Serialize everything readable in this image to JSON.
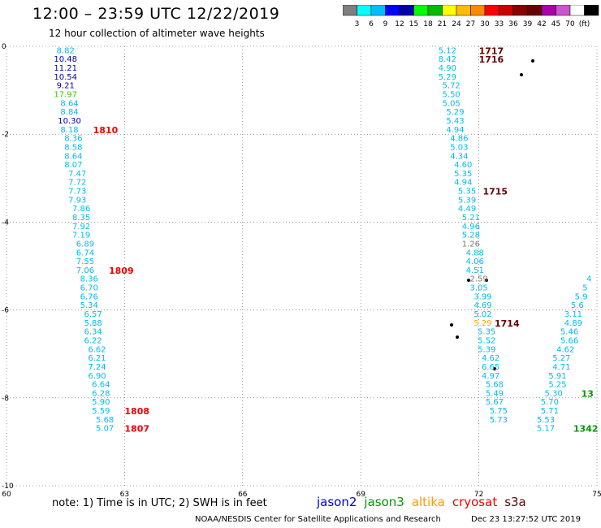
{
  "header": {
    "title": "12:00 – 23:59 UTC 12/22/2019",
    "subtitle": "12 hour collection of altimeter wave heights"
  },
  "legend_scale": {
    "colors": [
      "#7f7f7f",
      "#00ffff",
      "#00bfff",
      "#0000ff",
      "#0000aa",
      "#00ff00",
      "#00bb00",
      "#ffff00",
      "#ffbb00",
      "#ff8800",
      "#ff0000",
      "#cc0000",
      "#880000",
      "#660000",
      "#aa00aa",
      "#cc55cc",
      "#ffffff",
      "#000000"
    ],
    "labels": [
      "3",
      "6",
      "9",
      "12",
      "15",
      "18",
      "21",
      "24",
      "27",
      "30",
      "33",
      "36",
      "39",
      "42",
      "45",
      "70",
      "(ft)"
    ]
  },
  "footer": {
    "note": "note: 1) Time is in UTC; 2) SWH is in feet",
    "credit": "NOAA/NESDIS Center for Satellite Applications and Research",
    "timestamp": "Dec 23 13:27:52 UTC 2019"
  },
  "satellites": [
    {
      "name": "jason2",
      "color": "#0000cc"
    },
    {
      "name": "jason3",
      "color": "#009900"
    },
    {
      "name": "altika",
      "color": "#ff9900"
    },
    {
      "name": "cryosat",
      "color": "#ee0000"
    },
    {
      "name": "s3a",
      "color": "#660000"
    }
  ],
  "chart_data": {
    "type": "scatter",
    "xlim": [
      60,
      75
    ],
    "ylim": [
      -10,
      0
    ],
    "x_ticks": [
      "60",
      "63",
      "66",
      "69",
      "72",
      "75"
    ],
    "y_ticks": [
      "0",
      "-2",
      "-4",
      "-6",
      "-8",
      "-10"
    ],
    "grid": "dotted",
    "tracks": [
      {
        "name": "track-west",
        "color": "#00bbee",
        "points": [
          {
            "x": 61.5,
            "y": -0.1,
            "v": "8.82",
            "color": "#00bbee"
          },
          {
            "x": 61.5,
            "y": -0.3,
            "v": "10.48",
            "color": "#0000aa"
          },
          {
            "x": 61.5,
            "y": -0.5,
            "v": "11.21",
            "color": "#0000aa"
          },
          {
            "x": 61.5,
            "y": -0.7,
            "v": "10.54",
            "color": "#0000aa"
          },
          {
            "x": 61.5,
            "y": -0.9,
            "v": "9.21",
            "color": "#0000aa"
          },
          {
            "x": 61.5,
            "y": -1.1,
            "v": "17.97",
            "color": "#33cc00"
          },
          {
            "x": 61.6,
            "y": -1.3,
            "v": "8.64"
          },
          {
            "x": 61.6,
            "y": -1.5,
            "v": "8.84"
          },
          {
            "x": 61.6,
            "y": -1.7,
            "v": "10.30",
            "color": "#0000aa"
          },
          {
            "x": 61.6,
            "y": -1.9,
            "v": "8.18"
          },
          {
            "x": 61.7,
            "y": -2.1,
            "v": "8.36"
          },
          {
            "x": 61.7,
            "y": -2.3,
            "v": "8.58"
          },
          {
            "x": 61.7,
            "y": -2.5,
            "v": "8.64"
          },
          {
            "x": 61.7,
            "y": -2.7,
            "v": "8.07"
          },
          {
            "x": 61.8,
            "y": -2.9,
            "v": "7.47"
          },
          {
            "x": 61.8,
            "y": -3.1,
            "v": "7.72"
          },
          {
            "x": 61.8,
            "y": -3.3,
            "v": "7.73"
          },
          {
            "x": 61.8,
            "y": -3.5,
            "v": "7.93"
          },
          {
            "x": 61.9,
            "y": -3.7,
            "v": "7.86"
          },
          {
            "x": 61.9,
            "y": -3.9,
            "v": "8.35"
          },
          {
            "x": 61.9,
            "y": -4.1,
            "v": "7.92"
          },
          {
            "x": 61.9,
            "y": -4.3,
            "v": "7.19"
          },
          {
            "x": 62.0,
            "y": -4.5,
            "v": "6.89"
          },
          {
            "x": 62.0,
            "y": -4.7,
            "v": "6.74"
          },
          {
            "x": 62.0,
            "y": -4.9,
            "v": "7.55"
          },
          {
            "x": 62.0,
            "y": -5.1,
            "v": "7.06"
          },
          {
            "x": 62.1,
            "y": -5.3,
            "v": "8.36"
          },
          {
            "x": 62.1,
            "y": -5.5,
            "v": "6.70"
          },
          {
            "x": 62.1,
            "y": -5.7,
            "v": "6.76"
          },
          {
            "x": 62.1,
            "y": -5.9,
            "v": "5.34"
          },
          {
            "x": 62.2,
            "y": -6.1,
            "v": "6.57"
          },
          {
            "x": 62.2,
            "y": -6.3,
            "v": "5.88"
          },
          {
            "x": 62.2,
            "y": -6.5,
            "v": "6.34"
          },
          {
            "x": 62.2,
            "y": -6.7,
            "v": "6.22"
          },
          {
            "x": 62.3,
            "y": -6.9,
            "v": "6.62"
          },
          {
            "x": 62.3,
            "y": -7.1,
            "v": "6.21"
          },
          {
            "x": 62.3,
            "y": -7.3,
            "v": "7.24"
          },
          {
            "x": 62.3,
            "y": -7.5,
            "v": "6.90"
          },
          {
            "x": 62.4,
            "y": -7.7,
            "v": "6.64"
          },
          {
            "x": 62.4,
            "y": -7.9,
            "v": "6.28"
          },
          {
            "x": 62.4,
            "y": -8.1,
            "v": "5.90"
          },
          {
            "x": 62.4,
            "y": -8.3,
            "v": "5.59"
          },
          {
            "x": 62.5,
            "y": -8.5,
            "v": "5.68"
          },
          {
            "x": 62.5,
            "y": -8.7,
            "v": "5.07"
          }
        ]
      },
      {
        "name": "track-central",
        "color": "#00bbee",
        "points": [
          {
            "x": 71.2,
            "y": -0.1,
            "v": "5.12"
          },
          {
            "x": 71.2,
            "y": -0.3,
            "v": "8.42"
          },
          {
            "x": 71.2,
            "y": -0.5,
            "v": "4.90"
          },
          {
            "x": 71.2,
            "y": -0.7,
            "v": "5.29"
          },
          {
            "x": 71.3,
            "y": -0.9,
            "v": "5.72"
          },
          {
            "x": 71.3,
            "y": -1.1,
            "v": "5.50"
          },
          {
            "x": 71.3,
            "y": -1.3,
            "v": "5.05"
          },
          {
            "x": 71.4,
            "y": -1.5,
            "v": "5.29"
          },
          {
            "x": 71.4,
            "y": -1.7,
            "v": "5.43"
          },
          {
            "x": 71.4,
            "y": -1.9,
            "v": "4.94"
          },
          {
            "x": 71.5,
            "y": -2.1,
            "v": "4.86"
          },
          {
            "x": 71.5,
            "y": -2.3,
            "v": "5.03"
          },
          {
            "x": 71.5,
            "y": -2.5,
            "v": "4.34"
          },
          {
            "x": 71.6,
            "y": -2.7,
            "v": "4.60"
          },
          {
            "x": 71.6,
            "y": -2.9,
            "v": "5.35"
          },
          {
            "x": 71.6,
            "y": -3.1,
            "v": "4.94"
          },
          {
            "x": 71.7,
            "y": -3.3,
            "v": "5.35"
          },
          {
            "x": 71.7,
            "y": -3.5,
            "v": "5.39"
          },
          {
            "x": 71.7,
            "y": -3.7,
            "v": "4.49"
          },
          {
            "x": 71.8,
            "y": -3.9,
            "v": "5.21"
          },
          {
            "x": 71.8,
            "y": -4.1,
            "v": "4.96"
          },
          {
            "x": 71.8,
            "y": -4.3,
            "v": "5.28"
          },
          {
            "x": 71.8,
            "y": -4.5,
            "v": "1.26",
            "color": "#777777"
          },
          {
            "x": 71.9,
            "y": -4.7,
            "v": "4.88"
          },
          {
            "x": 71.9,
            "y": -4.9,
            "v": "4.06"
          },
          {
            "x": 71.9,
            "y": -5.1,
            "v": "4.51"
          },
          {
            "x": 72.0,
            "y": -5.3,
            "v": "2.59",
            "color": "#777777"
          },
          {
            "x": 72.0,
            "y": -5.5,
            "v": "3.05"
          },
          {
            "x": 72.1,
            "y": -5.7,
            "v": "3.99"
          },
          {
            "x": 72.1,
            "y": -5.9,
            "v": "4.69"
          },
          {
            "x": 72.1,
            "y": -6.1,
            "v": "5.02"
          },
          {
            "x": 72.1,
            "y": -6.3,
            "v": "5.29",
            "color": "#ffaa00"
          },
          {
            "x": 72.2,
            "y": -6.5,
            "v": "5.35"
          },
          {
            "x": 72.2,
            "y": -6.7,
            "v": "5.52"
          },
          {
            "x": 72.2,
            "y": -6.9,
            "v": "5.39"
          },
          {
            "x": 72.3,
            "y": -7.1,
            "v": "4.62"
          },
          {
            "x": 72.3,
            "y": -7.3,
            "v": "6.65"
          },
          {
            "x": 72.3,
            "y": -7.5,
            "v": "4.97"
          },
          {
            "x": 72.4,
            "y": -7.7,
            "v": "5.68"
          },
          {
            "x": 72.4,
            "y": -7.9,
            "v": "5.49"
          },
          {
            "x": 72.4,
            "y": -8.1,
            "v": "5.67"
          },
          {
            "x": 72.5,
            "y": -8.3,
            "v": "5.75"
          },
          {
            "x": 72.5,
            "y": -8.5,
            "v": "5.73"
          }
        ]
      },
      {
        "name": "track-east",
        "color": "#00bbee",
        "points": [
          {
            "x": 73.7,
            "y": -8.7,
            "v": "5.17"
          },
          {
            "x": 73.7,
            "y": -8.5,
            "v": "5.53"
          },
          {
            "x": 73.8,
            "y": -8.3,
            "v": "5.71"
          },
          {
            "x": 73.8,
            "y": -8.1,
            "v": "5.70"
          },
          {
            "x": 73.9,
            "y": -7.9,
            "v": "5.30"
          },
          {
            "x": 74.0,
            "y": -7.7,
            "v": "5.25"
          },
          {
            "x": 74.0,
            "y": -7.5,
            "v": "5.91"
          },
          {
            "x": 74.1,
            "y": -7.3,
            "v": "4.71"
          },
          {
            "x": 74.1,
            "y": -7.1,
            "v": "5.27"
          },
          {
            "x": 74.2,
            "y": -6.9,
            "v": "4.62"
          },
          {
            "x": 74.3,
            "y": -6.7,
            "v": "5.66"
          },
          {
            "x": 74.3,
            "y": -6.5,
            "v": "5.46"
          },
          {
            "x": 74.4,
            "y": -6.3,
            "v": "4.89"
          },
          {
            "x": 74.4,
            "y": -6.1,
            "v": "3.11"
          },
          {
            "x": 74.5,
            "y": -5.9,
            "v": "5.6"
          },
          {
            "x": 74.6,
            "y": -5.7,
            "v": "5.9"
          },
          {
            "x": 74.7,
            "y": -5.5,
            "v": "5"
          },
          {
            "x": 74.8,
            "y": -5.3,
            "v": "4"
          }
        ]
      }
    ],
    "time_labels": [
      {
        "x": 72.0,
        "y": -0.1,
        "label": "1717",
        "color": "#660000"
      },
      {
        "x": 72.0,
        "y": -0.3,
        "label": "1716",
        "color": "#660000"
      },
      {
        "x": 72.1,
        "y": -3.3,
        "label": "1715",
        "color": "#660000"
      },
      {
        "x": 72.4,
        "y": -6.3,
        "label": "1714",
        "color": "#660000"
      },
      {
        "x": 62.2,
        "y": -1.9,
        "label": "1810",
        "color": "#ee0000"
      },
      {
        "x": 62.6,
        "y": -5.1,
        "label": "1809",
        "color": "#ee0000"
      },
      {
        "x": 63.0,
        "y": -8.3,
        "label": "1808",
        "color": "#ee0000"
      },
      {
        "x": 63.0,
        "y": -8.7,
        "label": "1807",
        "color": "#ee0000"
      },
      {
        "x": 74.6,
        "y": -7.9,
        "label": "13",
        "color": "#009900"
      },
      {
        "x": 74.4,
        "y": -8.7,
        "label": "1342",
        "color": "#009900"
      }
    ]
  }
}
